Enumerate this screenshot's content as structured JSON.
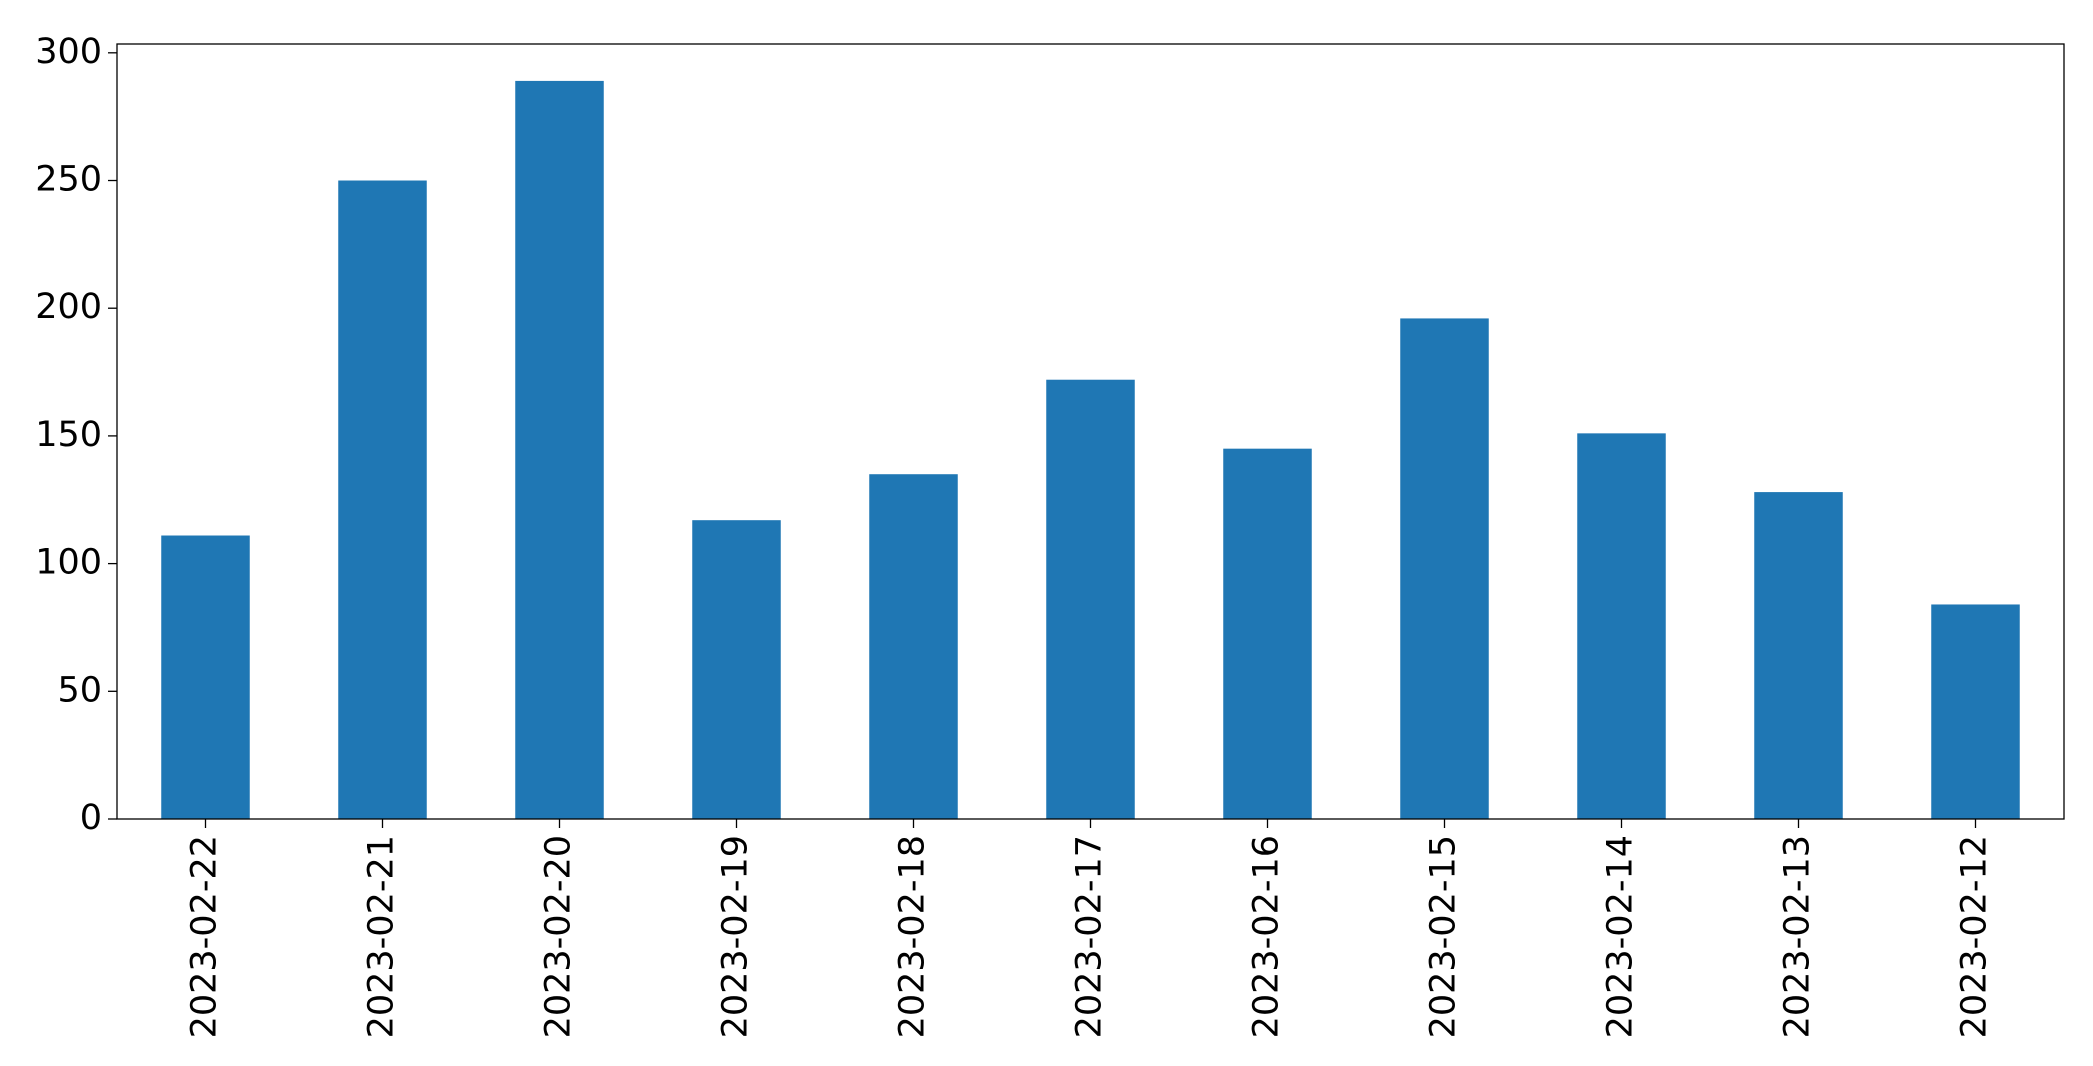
{
  "chart_data": {
    "type": "bar",
    "categories": [
      "2023-02-22",
      "2023-02-21",
      "2023-02-20",
      "2023-02-19",
      "2023-02-18",
      "2023-02-17",
      "2023-02-16",
      "2023-02-15",
      "2023-02-14",
      "2023-02-13",
      "2023-02-12"
    ],
    "values": [
      111,
      250,
      289,
      117,
      135,
      172,
      145,
      196,
      151,
      128,
      84
    ],
    "color": "#1f77b4",
    "ylim": [
      0,
      303.45
    ],
    "yticks": [
      0,
      50,
      100,
      150,
      200,
      250,
      300
    ],
    "grid": false
  }
}
